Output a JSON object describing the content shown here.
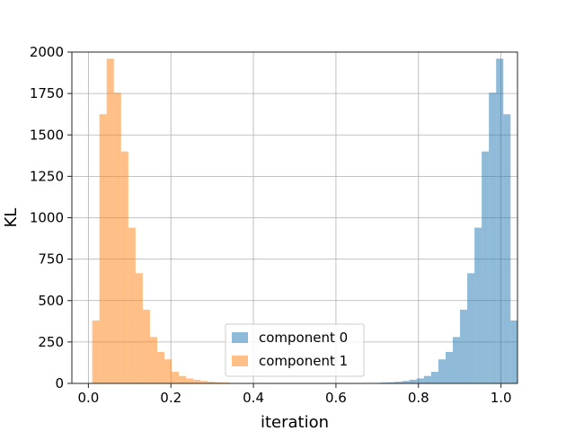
{
  "chart_data": {
    "type": "bar",
    "subtype": "histogram",
    "xlabel": "iteration",
    "ylabel": "KL",
    "xlim": [
      -0.04,
      1.04
    ],
    "ylim": [
      0,
      2000
    ],
    "xticks": [
      0.0,
      0.2,
      0.4,
      0.6,
      0.8,
      1.0
    ],
    "xtick_labels": [
      "0.0",
      "0.2",
      "0.4",
      "0.6",
      "0.8",
      "1.0"
    ],
    "yticks": [
      0,
      250,
      500,
      750,
      1000,
      1250,
      1500,
      1750,
      2000
    ],
    "ytick_labels": [
      "0",
      "250",
      "500",
      "750",
      "1000",
      "1250",
      "1500",
      "1750",
      "2000"
    ],
    "grid": true,
    "legend_position": "lower-center",
    "bin_width": 0.0175,
    "series": [
      {
        "name": "component 0",
        "color": "#1f77b4",
        "alpha": 0.5,
        "bin_start": 0.6557,
        "values": [
          1,
          2,
          3,
          5,
          7,
          10,
          15,
          22,
          30,
          45,
          70,
          145,
          190,
          280,
          445,
          665,
          940,
          1400,
          1755,
          1960,
          1625,
          380
        ]
      },
      {
        "name": "component 1",
        "color": "#ff7f0e",
        "alpha": 0.5,
        "bin_start": 0.0093,
        "values": [
          380,
          1625,
          1960,
          1755,
          1400,
          940,
          665,
          445,
          280,
          190,
          145,
          70,
          45,
          30,
          22,
          15,
          10,
          7,
          5,
          3,
          2,
          1
        ]
      }
    ]
  }
}
